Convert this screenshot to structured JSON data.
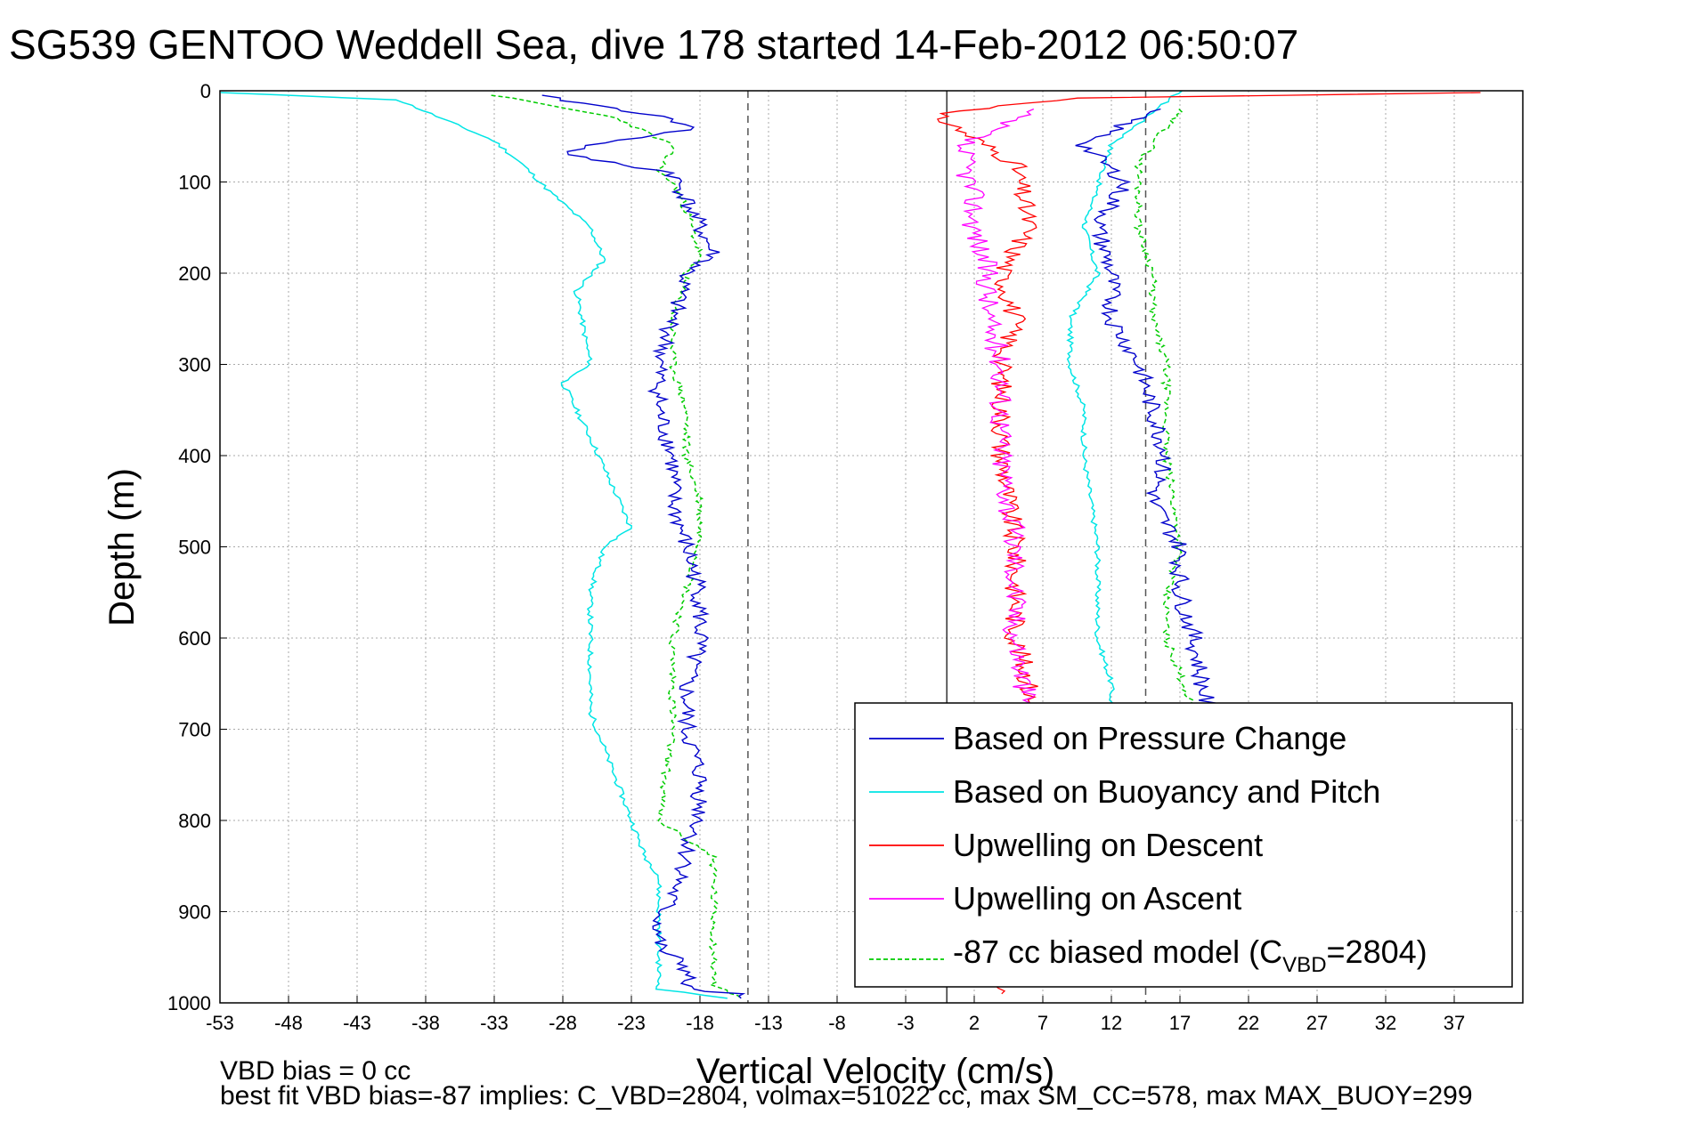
{
  "chart_data": {
    "type": "line",
    "title": "SG539 GENTOO Weddell Sea, dive 178 started 14-Feb-2012 06:50:07",
    "xlabel": "Vertical Velocity (cm/s)",
    "ylabel": "Depth (m)",
    "xlim": [
      -53,
      42
    ],
    "ylim": [
      0,
      1000
    ],
    "y_reversed": true,
    "xticks": [
      -53,
      -48,
      -43,
      -38,
      -33,
      -28,
      -23,
      -18,
      -13,
      -8,
      -3,
      2,
      7,
      12,
      17,
      22,
      27,
      32,
      37
    ],
    "yticks": [
      0,
      100,
      200,
      300,
      400,
      500,
      600,
      700,
      800,
      900,
      1000
    ],
    "grid": true,
    "legend_position": "bottom-right",
    "reference_lines": [
      {
        "style": "dashed",
        "x": -14.5
      },
      {
        "style": "solid",
        "x": 0
      },
      {
        "style": "dashed",
        "x": 14.5
      }
    ],
    "series": [
      {
        "name": "Based on Pressure Change",
        "color": "#0000cc",
        "x": [
          -30,
          -22,
          -18,
          -26,
          -28,
          -20,
          -19,
          -18,
          -17,
          -19,
          -20,
          -21,
          -21,
          -20,
          -20,
          -19,
          -18,
          -18,
          -19,
          -19,
          -18,
          -18,
          -19,
          -19,
          -20,
          -21,
          -21,
          -19,
          -19,
          -15.5,
          -15
        ],
        "y": [
          5,
          25,
          40,
          60,
          70,
          90,
          120,
          150,
          180,
          200,
          250,
          300,
          350,
          400,
          450,
          500,
          550,
          600,
          650,
          700,
          750,
          800,
          830,
          850,
          880,
          910,
          940,
          960,
          985,
          990,
          995
        ]
      },
      {
        "name": "Based on Buoyancy and Pitch",
        "color": "#00e5e5",
        "x": [
          -53,
          -40,
          -33,
          -31,
          -29,
          -26,
          -25,
          -27,
          -26,
          -28,
          -26,
          -23,
          -25,
          -26,
          -26,
          -22,
          -21,
          -21,
          -21,
          -21,
          -16
        ],
        "y": [
          2,
          10,
          55,
          80,
          110,
          150,
          185,
          220,
          300,
          320,
          380,
          480,
          500,
          550,
          680,
          840,
          860,
          900,
          950,
          985,
          995
        ],
        "y_note": "desc",
        "x_asc": [
          17,
          12,
          10,
          11,
          9,
          9,
          10,
          10,
          11,
          11,
          11,
          12,
          12
        ],
        "y_asc": [
          0,
          60,
          150,
          200,
          250,
          300,
          350,
          400,
          500,
          550,
          600,
          650,
          680
        ]
      },
      {
        "name": "Upwelling on Descent",
        "color": "#ff0000",
        "x": [
          39,
          10,
          -1,
          5,
          6,
          4,
          5,
          4,
          4,
          5,
          5,
          6,
          6,
          4
        ],
        "y": [
          2,
          8,
          25,
          80,
          150,
          200,
          250,
          300,
          400,
          500,
          600,
          650,
          700,
          990
        ]
      },
      {
        "name": "Upwelling on Ascent",
        "color": "#ff00ff",
        "x": [
          6,
          1,
          2,
          2,
          3,
          3,
          4,
          4,
          5,
          5,
          6
        ],
        "y": [
          20,
          60,
          120,
          150,
          200,
          250,
          300,
          400,
          500,
          600,
          680
        ]
      },
      {
        "name": "-87 cc biased model (C_VBD=2804)",
        "color": "#00cc00",
        "x": [
          -33,
          -24,
          -20,
          -21,
          -20,
          -19,
          -18,
          -19,
          -20,
          -20,
          -19,
          -19,
          -18,
          -18,
          -19,
          -20,
          -20,
          -21,
          -17,
          -17,
          -17,
          -15
        ],
        "y": [
          5,
          30,
          60,
          90,
          100,
          130,
          180,
          200,
          250,
          300,
          350,
          400,
          450,
          500,
          550,
          600,
          700,
          800,
          840,
          900,
          980,
          995
        ]
      }
    ],
    "ascent_pressure_change": {
      "color": "#0000cc",
      "x": [
        15,
        10,
        13,
        11,
        12,
        12,
        14,
        15,
        16,
        15,
        17,
        17,
        18,
        19
      ],
      "y": [
        20,
        60,
        100,
        150,
        200,
        250,
        300,
        350,
        400,
        450,
        500,
        550,
        600,
        680
      ]
    },
    "ascent_model": {
      "color": "#00cc00",
      "x": [
        17,
        14,
        14,
        15,
        15,
        16,
        16,
        16,
        17,
        16,
        16,
        18
      ],
      "y": [
        20,
        80,
        150,
        200,
        250,
        300,
        350,
        400,
        500,
        550,
        600,
        680
      ]
    },
    "annotations": [
      "VBD bias = 0 cc",
      "best fit VBD bias=-87 implies: C_VBD=2804, volmax=51022 cc, max SM_CC=578, max MAX_BUOY=299"
    ]
  }
}
